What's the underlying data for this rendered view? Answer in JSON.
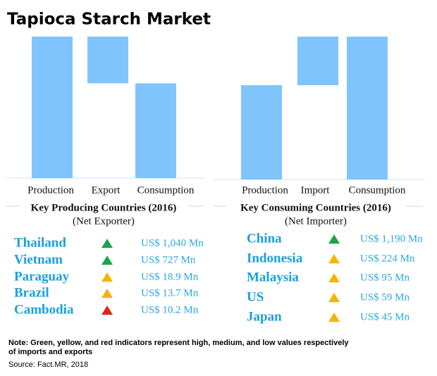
{
  "title": "Tapioca Starch Market",
  "chart_data": [
    {
      "type": "waterfall",
      "categories": [
        "Production",
        "Export",
        "Consumption"
      ],
      "values": [
        100,
        -33,
        67
      ],
      "measure": [
        "absolute",
        "relative",
        "total"
      ],
      "color": "#7fc4fd",
      "ylim": [
        0,
        100
      ]
    },
    {
      "type": "waterfall",
      "categories": [
        "Production",
        "Import",
        "Consumption"
      ],
      "values": [
        66,
        34,
        100
      ],
      "measure": [
        "absolute",
        "relative",
        "total"
      ],
      "color": "#7fc4fd",
      "ylim": [
        0,
        100
      ]
    }
  ],
  "panels": [
    {
      "heading": "Key Producing Countries (2016)",
      "subheading": "(Net Exporter)",
      "rows": [
        {
          "country": "Thailand",
          "indicator": "green",
          "value": "US$ 1,040 Mn"
        },
        {
          "country": "Vietnam",
          "indicator": "green",
          "value": "US$ 727 Mn"
        },
        {
          "country": "Paraguay",
          "indicator": "yellow",
          "value": "US$ 18.9 Mn"
        },
        {
          "country": "Brazil",
          "indicator": "yellow",
          "value": "US$ 13.7 Mn"
        },
        {
          "country": "Cambodia",
          "indicator": "red",
          "value": "US$ 10.2 Mn"
        }
      ]
    },
    {
      "heading": "Key Consuming Countries (2016)",
      "subheading": "(Net Importer)",
      "rows": [
        {
          "country": "China",
          "indicator": "green",
          "value": "US$ 1,190 Mn"
        },
        {
          "country": "Indonesia",
          "indicator": "yellow",
          "value": "US$ 224 Mn"
        },
        {
          "country": "Malaysia",
          "indicator": "yellow",
          "value": "US$ 95 Mn"
        },
        {
          "country": "US",
          "indicator": "yellow",
          "value": "US$ 59 Mn"
        },
        {
          "country": "Japan",
          "indicator": "yellow",
          "value": "US$ 45 Mn"
        }
      ]
    }
  ],
  "note": [
    "Note: Green, yellow, and red indicators represent high, medium, and low values respectively",
    "of imports and exports"
  ],
  "source": "Source: Fact.MR, 2018"
}
